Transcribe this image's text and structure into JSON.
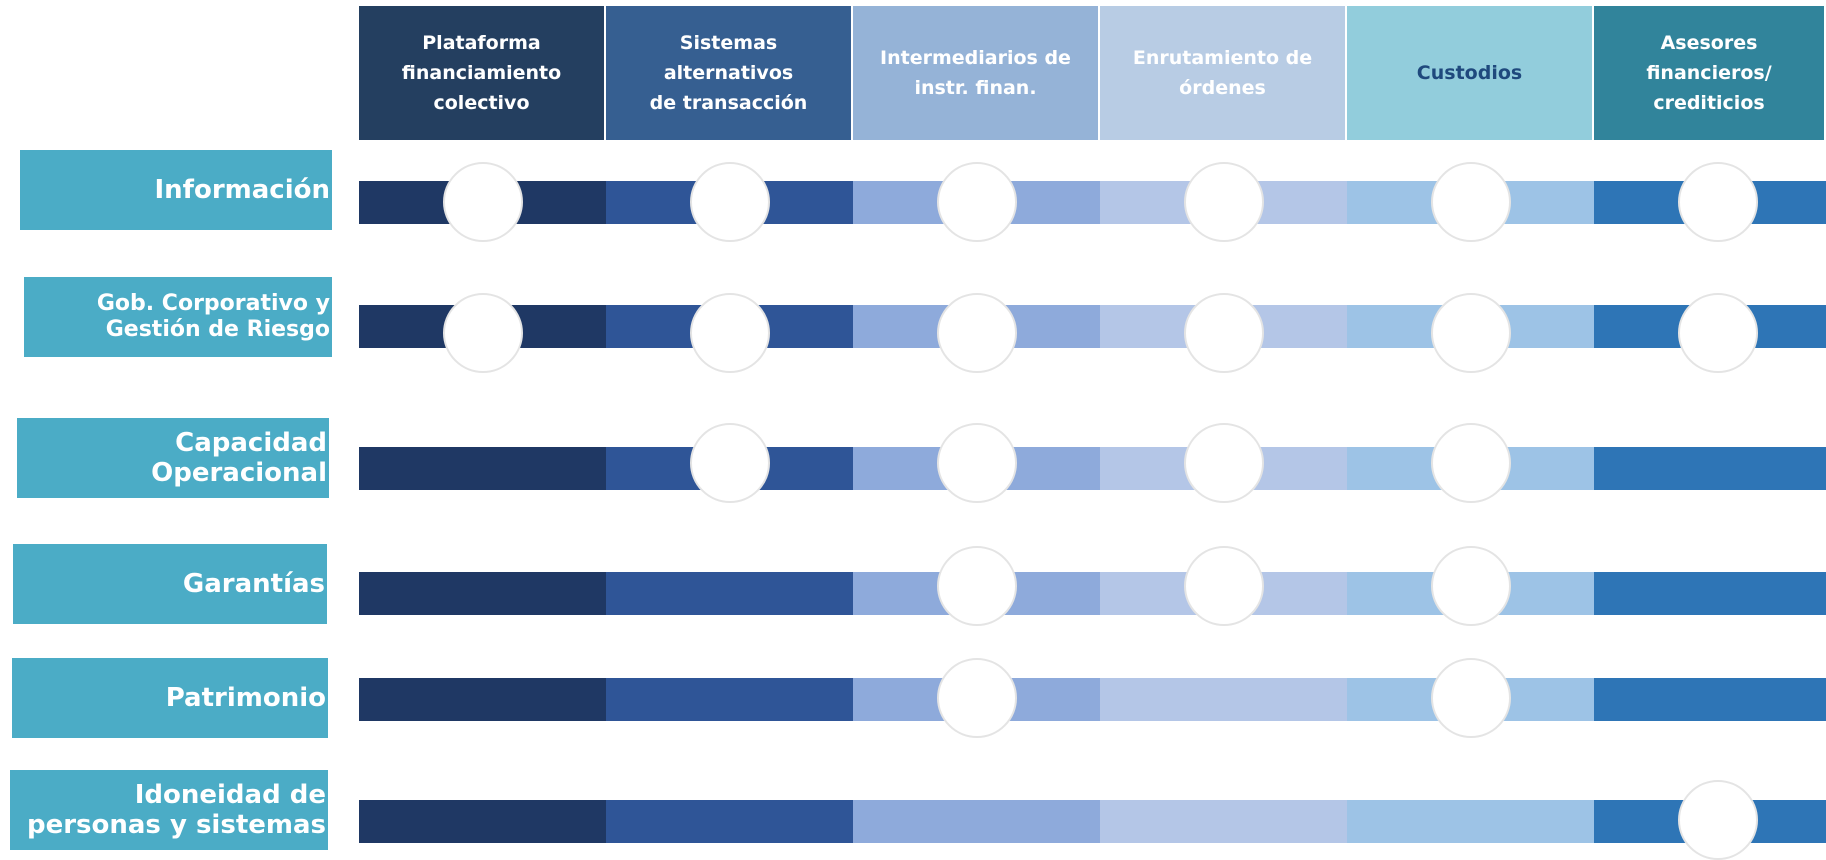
{
  "columns": [
    {
      "label": "Plataforma\nfinanciamiento\ncolectivo",
      "bg": "#243f60",
      "color": "#ffffff"
    },
    {
      "label": "Sistemas alternativos\nde transacción",
      "bg": "#365f91",
      "color": "#ffffff"
    },
    {
      "label": "Intermediarios de\ninstr. finan.",
      "bg": "#95b3d7",
      "color": "#ffffff"
    },
    {
      "label": "Enrutamiento de\nórdenes",
      "bg": "#b8cce4",
      "color": "#ffffff"
    },
    {
      "label": "Custodios",
      "bg": "#92cddc",
      "color": "#1f497d"
    },
    {
      "label": "Asesores financieros/\ncrediticios",
      "bg": "#31849b",
      "color": "#ffffff"
    }
  ],
  "rows": [
    {
      "label": "Información",
      "markers": [
        true,
        true,
        true,
        true,
        true,
        true
      ]
    },
    {
      "label": "Gob. Corporativo y\nGestión de Riesgo",
      "markers": [
        true,
        true,
        true,
        true,
        true,
        true
      ]
    },
    {
      "label": "Capacidad\nOperacional",
      "markers": [
        false,
        true,
        true,
        true,
        true,
        false
      ]
    },
    {
      "label": "Garantías",
      "markers": [
        false,
        false,
        true,
        true,
        true,
        false
      ]
    },
    {
      "label": "Patrimonio",
      "markers": [
        false,
        false,
        true,
        false,
        true,
        false
      ]
    },
    {
      "label": "Idoneidad de\npersonas y sistemas",
      "markers": [
        false,
        false,
        false,
        false,
        false,
        true
      ]
    }
  ],
  "colors": {
    "label_bg": "#4bacc6",
    "bar_segments": [
      "#1f3864",
      "#2f5597",
      "#8eaadb",
      "#b4c6e7",
      "#9dc3e6",
      "#2e75b6"
    ]
  }
}
